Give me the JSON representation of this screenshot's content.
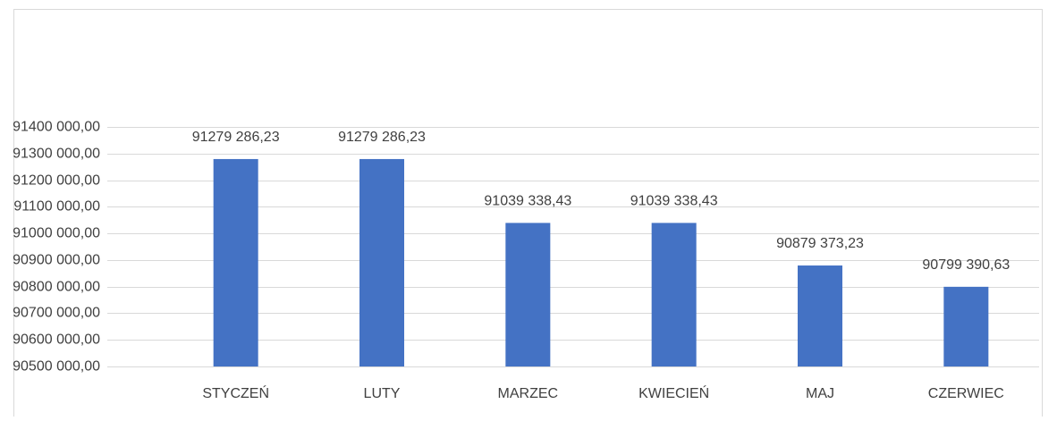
{
  "chart_data": {
    "type": "bar",
    "categories": [
      "STYCZEŃ",
      "LUTY",
      "MARZEC",
      "KWIECIEŃ",
      "MAJ",
      "CZERWIEC"
    ],
    "values": [
      91279286.23,
      91279286.23,
      91039338.43,
      91039338.43,
      90879373.23,
      90799390.63
    ],
    "value_labels": [
      "91279 286,23",
      "91279 286,23",
      "91039 338,43",
      "91039 338,43",
      "90879 373,23",
      "90799 390,63"
    ],
    "color": "#4472c4",
    "ylim": [
      90500000,
      91400000
    ],
    "yticks": [
      {
        "value": 90500000,
        "label": "90500 000,00"
      },
      {
        "value": 90600000,
        "label": "90600 000,00"
      },
      {
        "value": 90700000,
        "label": "90700 000,00"
      },
      {
        "value": 90800000,
        "label": "90800 000,00"
      },
      {
        "value": 90900000,
        "label": "90900 000,00"
      },
      {
        "value": 91000000,
        "label": "91000 000,00"
      },
      {
        "value": 91100000,
        "label": "91100 000,00"
      },
      {
        "value": 91200000,
        "label": "91200 000,00"
      },
      {
        "value": 91300000,
        "label": "91300 000,00"
      },
      {
        "value": 91400000,
        "label": "91400 000,00"
      }
    ],
    "grid": true
  }
}
